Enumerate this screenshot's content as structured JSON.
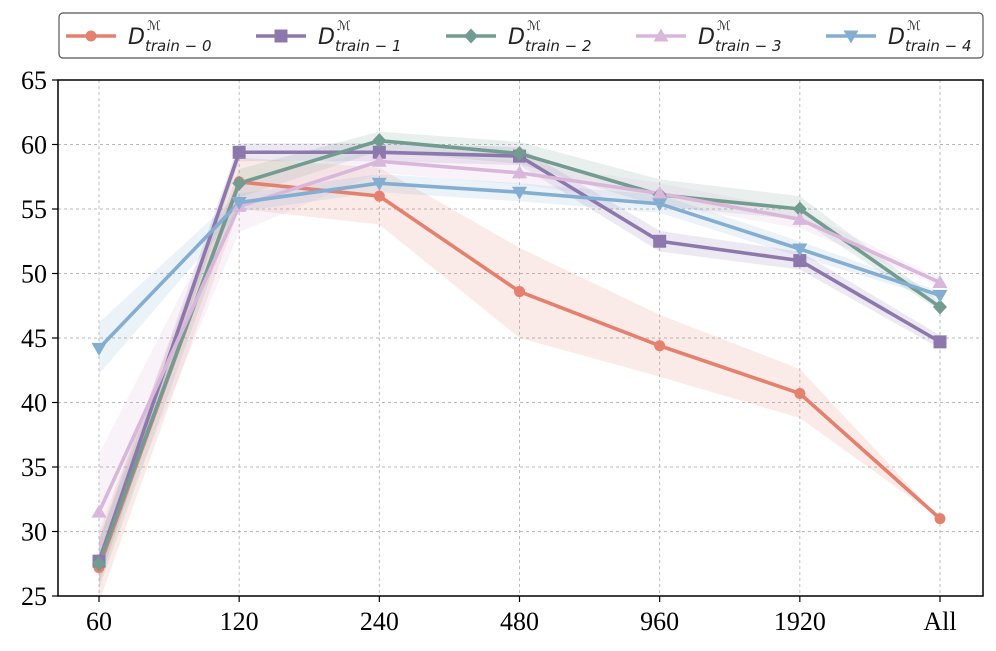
{
  "chart_data": {
    "type": "line",
    "title": "",
    "xlabel": "",
    "ylabel": "",
    "categories": [
      "60",
      "120",
      "240",
      "480",
      "960",
      "1920",
      "All"
    ],
    "ylim": [
      25,
      65
    ],
    "yticks": [
      25,
      30,
      35,
      40,
      45,
      50,
      55,
      60,
      65
    ],
    "grid": true,
    "legend_position": "top",
    "series": [
      {
        "name": "D_train-0",
        "legend_base": "D",
        "legend_sup": "ℳ",
        "legend_sub": "train − 0",
        "color": "#e5806f",
        "marker": "circle",
        "values": [
          27.2,
          57.1,
          56.0,
          48.6,
          44.4,
          40.7,
          31.0
        ],
        "lower": [
          24.5,
          55.0,
          53.8,
          45.0,
          42.0,
          38.8,
          31.0
        ],
        "upper": [
          30.0,
          59.0,
          58.2,
          52.0,
          46.8,
          42.6,
          31.0
        ]
      },
      {
        "name": "D_train-1",
        "legend_base": "D",
        "legend_sup": "ℳ",
        "legend_sub": "train − 1",
        "color": "#8c78ac",
        "marker": "square",
        "values": [
          27.7,
          59.4,
          59.4,
          59.1,
          52.5,
          51.0,
          44.7
        ],
        "lower": [
          26.0,
          58.7,
          58.7,
          58.4,
          51.7,
          50.3,
          44.2
        ],
        "upper": [
          29.4,
          60.1,
          60.1,
          59.8,
          53.3,
          51.7,
          45.2
        ]
      },
      {
        "name": "D_train-2",
        "legend_base": "D",
        "legend_sup": "ℳ",
        "legend_sub": "train − 2",
        "color": "#739c90",
        "marker": "diamond",
        "values": [
          27.5,
          57.0,
          60.3,
          59.3,
          56.1,
          55.0,
          47.4
        ],
        "lower": [
          25.6,
          55.9,
          59.5,
          58.5,
          55.2,
          54.2,
          47.1
        ],
        "upper": [
          29.4,
          58.1,
          61.0,
          60.2,
          57.3,
          56.0,
          47.8
        ]
      },
      {
        "name": "D_train-3",
        "legend_base": "D",
        "legend_sup": "ℳ",
        "legend_sub": "train − 3",
        "color": "#d9b7da",
        "marker": "triangle-up",
        "values": [
          31.5,
          55.2,
          58.7,
          57.8,
          56.2,
          54.2,
          49.3
        ],
        "lower": [
          27.0,
          53.2,
          57.8,
          56.9,
          55.4,
          53.5,
          49.0
        ],
        "upper": [
          36.0,
          57.2,
          59.6,
          58.7,
          57.0,
          54.9,
          49.6
        ]
      },
      {
        "name": "D_train-4",
        "legend_base": "D",
        "legend_sup": "ℳ",
        "legend_sub": "train − 4",
        "color": "#84aed1",
        "marker": "triangle-down",
        "values": [
          44.2,
          55.5,
          57.0,
          56.3,
          55.4,
          51.9,
          48.3
        ],
        "lower": [
          42.2,
          54.8,
          56.3,
          55.6,
          54.7,
          51.3,
          48.0
        ],
        "upper": [
          46.2,
          56.2,
          57.7,
          57.0,
          56.1,
          52.5,
          48.6
        ]
      }
    ]
  }
}
